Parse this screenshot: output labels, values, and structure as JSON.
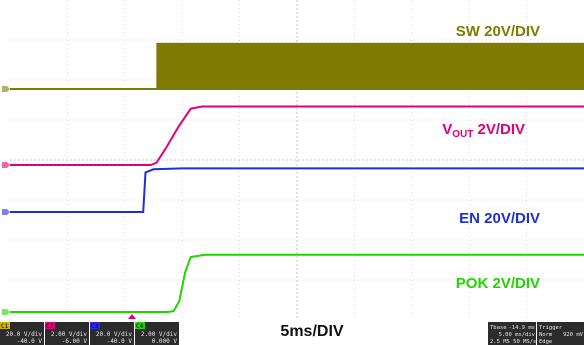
{
  "chart_data": {
    "type": "line",
    "xlabel": "",
    "ylabel": "",
    "timebase_label": "5ms/DIV",
    "grid": true,
    "divisions": {
      "x": 10,
      "y": 8
    },
    "x_unit": "ms",
    "series": [
      {
        "name": "SW 20V/DIV",
        "color": "#7f7a00",
        "kind": "switching",
        "baseline": 0,
        "high": 1.05,
        "start": 2.55
      },
      {
        "name": "VOUT 2V/DIV",
        "name_main": "V",
        "name_sub": "OUT",
        "name_rest": " 2V/DIV",
        "color": "#e0007a",
        "points": [
          [
            0,
            0
          ],
          [
            2.45,
            0
          ],
          [
            2.55,
            0.05
          ],
          [
            2.7,
            0.35
          ],
          [
            2.95,
            0.9
          ],
          [
            3.15,
            1.28
          ],
          [
            3.35,
            1.33
          ],
          [
            10,
            1.33
          ]
        ]
      },
      {
        "name": "EN 20V/DIV",
        "color": "#1f2fd6",
        "points": [
          [
            0,
            0
          ],
          [
            2.32,
            0
          ],
          [
            2.36,
            0.9
          ],
          [
            2.5,
            0.97
          ],
          [
            3.0,
            0.99
          ],
          [
            10,
            0.99
          ]
        ]
      },
      {
        "name": "POK 2V/DIV",
        "color": "#22d400",
        "points": [
          [
            0,
            0
          ],
          [
            2.75,
            0
          ],
          [
            2.85,
            0.02
          ],
          [
            2.95,
            0.25
          ],
          [
            3.05,
            0.9
          ],
          [
            3.15,
            1.25
          ],
          [
            3.4,
            1.3
          ],
          [
            10,
            1.3
          ]
        ]
      }
    ]
  },
  "status_bar": {
    "channels": [
      {
        "id": "C1",
        "scale": "20.0 V/div",
        "offset": "-40.0 V",
        "color": "#c8b400"
      },
      {
        "id": "C2",
        "scale": "2.00 V/div",
        "offset": "-6.00 V",
        "color": "#e0007a"
      },
      {
        "id": "C3",
        "scale": "20.0 V/div",
        "offset": "-40.0 V",
        "color": "#2a2ad8"
      },
      {
        "id": "C4",
        "scale": "2.00 V/div",
        "offset": "0.000 V",
        "color": "#22d400"
      }
    ],
    "tbase_label": "Tbase",
    "tbase_value": "-14.9 ms",
    "time_div": "5.00 ms/div",
    "sample_info": "2.5 MS  50 MS/s",
    "trigger_label": "Trigger",
    "trigger_mode": "Norm",
    "trigger_value": "920 mV",
    "trigger_type": "Edge"
  }
}
